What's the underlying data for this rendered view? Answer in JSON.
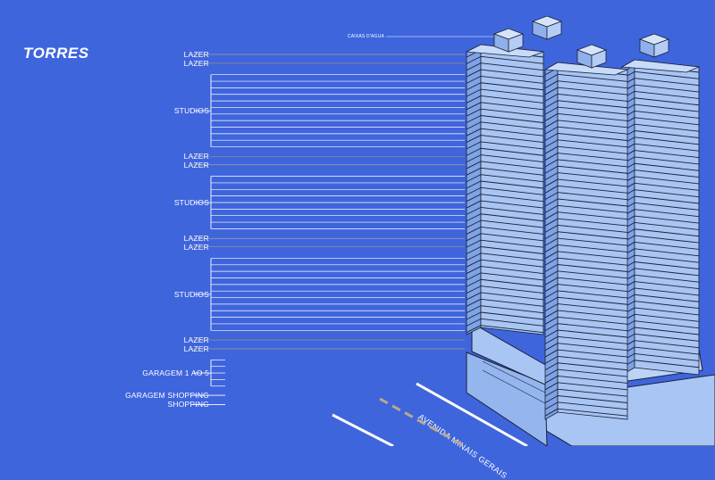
{
  "title": "TORRES",
  "annotation": "CAIXAS D'AGUA",
  "street": "AVENIDA MINAIS GERAIS",
  "sections": [
    {
      "label": "LAZER",
      "floors": 1
    },
    {
      "label": "LAZER",
      "floors": 1
    },
    {
      "label": "STUDIOS",
      "floors": 12
    },
    {
      "label": "LAZER",
      "floors": 1
    },
    {
      "label": "LAZER",
      "floors": 1
    },
    {
      "label": "STUDIOS",
      "floors": 9
    },
    {
      "label": "LAZER",
      "floors": 1
    },
    {
      "label": "LAZER",
      "floors": 1
    },
    {
      "label": "STUDIOS",
      "floors": 12
    },
    {
      "label": "LAZER",
      "floors": 1
    },
    {
      "label": "LAZER",
      "floors": 1
    },
    {
      "label": "GARAGEM 1 AO 5",
      "floors": 5
    },
    {
      "label": "GARAGEM SHOPPING",
      "floors": 1
    },
    {
      "label": "SHOPPING",
      "floors": 1
    }
  ],
  "colors": {
    "background": "#3f65dd",
    "building": "#a9c5f3",
    "building_shade": "#7fa3e6",
    "outline": "#1a2238",
    "line": "#ffffff",
    "road_marking": "#b7ab8a"
  }
}
